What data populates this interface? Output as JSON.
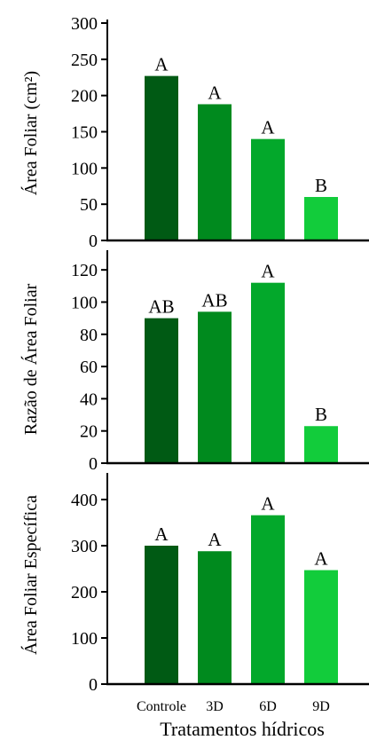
{
  "colors": {
    "bars": [
      "#005a14",
      "#008a1e",
      "#03a82b",
      "#12cc3b"
    ],
    "axis": "#000000",
    "background": "#ffffff"
  },
  "chart_data": [
    {
      "type": "bar",
      "ylabel": "Área Foliar (cm²)",
      "categories": [
        "Controle",
        "3D",
        "6D",
        "9D"
      ],
      "values": [
        227,
        188,
        140,
        60
      ],
      "letters": [
        "A",
        "A",
        "A",
        "B"
      ],
      "ylim": [
        0,
        300
      ],
      "yticks": [
        0,
        50,
        100,
        150,
        200,
        250,
        300
      ],
      "show_category_labels": false,
      "grid": false
    },
    {
      "type": "bar",
      "ylabel": "Razão de Área Foliar",
      "categories": [
        "Controle",
        "3D",
        "6D",
        "9D"
      ],
      "values": [
        90,
        94,
        112,
        23
      ],
      "letters": [
        "AB",
        "AB",
        "A",
        "B"
      ],
      "ylim": [
        0,
        130
      ],
      "yticks": [
        0,
        20,
        40,
        60,
        80,
        100,
        120
      ],
      "show_category_labels": false,
      "grid": false
    },
    {
      "type": "bar",
      "ylabel": "Área Foliar Específica",
      "categories": [
        "Controle",
        "3D",
        "6D",
        "9D"
      ],
      "values": [
        300,
        288,
        366,
        247
      ],
      "letters": [
        "A",
        "A",
        "A",
        "A"
      ],
      "ylim": [
        0,
        450
      ],
      "yticks": [
        0,
        100,
        200,
        300,
        400
      ],
      "show_category_labels": true,
      "xlabel": "Tratamentos hídricos",
      "grid": false
    }
  ]
}
